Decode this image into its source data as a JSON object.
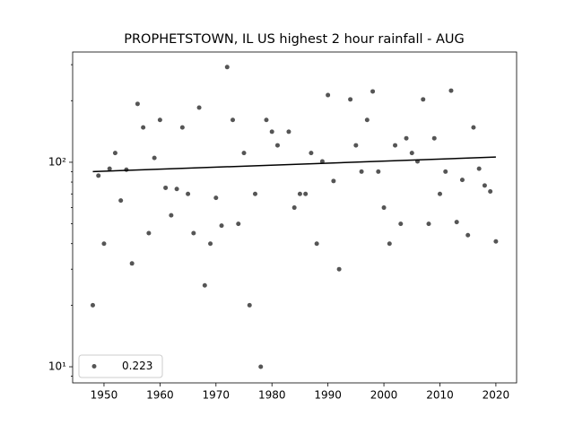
{
  "chart_data": {
    "type": "scatter",
    "title": "PROPHETSTOWN, IL US highest 2 hour rainfall - AUG",
    "series": [
      {
        "name": "0.223",
        "color": "#555555",
        "x": [
          1948,
          1949,
          1950,
          1951,
          1952,
          1953,
          1954,
          1955,
          1956,
          1957,
          1958,
          1959,
          1960,
          1961,
          1962,
          1963,
          1964,
          1965,
          1966,
          1967,
          1968,
          1969,
          1970,
          1971,
          1972,
          1973,
          1974,
          1975,
          1976,
          1977,
          1978,
          1979,
          1980,
          1981,
          1983,
          1984,
          1985,
          1986,
          1987,
          1988,
          1989,
          1990,
          1991,
          1992,
          1994,
          1995,
          1996,
          1997,
          1998,
          1999,
          2000,
          2001,
          2002,
          2003,
          2004,
          2005,
          2006,
          2007,
          2008,
          2009,
          2010,
          2011,
          2012,
          2013,
          2014,
          2015,
          2016,
          2017,
          2018,
          2019,
          2020
        ],
        "values": [
          20,
          86,
          40,
          93,
          111,
          65,
          92,
          32,
          193,
          148,
          45,
          105,
          161,
          75,
          55,
          74,
          148,
          70,
          45,
          185,
          25,
          40,
          67,
          49,
          292,
          161,
          50,
          111,
          20,
          70,
          10,
          161,
          141,
          121,
          141,
          60,
          70,
          70,
          111,
          40,
          101,
          213,
          81,
          30,
          203,
          121,
          90,
          161,
          222,
          90,
          60,
          40,
          121,
          50,
          131,
          111,
          101,
          203,
          50,
          131,
          70,
          90,
          224,
          51,
          82,
          44,
          148,
          93,
          77,
          72,
          41
        ]
      }
    ],
    "trend": {
      "x": [
        1948,
        2020
      ],
      "values": [
        90,
        106
      ],
      "color": "#000000"
    },
    "xlim": [
      1944.4,
      2023.7
    ],
    "xticks": [
      1950,
      1960,
      1970,
      1980,
      1990,
      2000,
      2010,
      2020
    ],
    "ylim": [
      8.34,
      346
    ],
    "log_y": true,
    "yticks": [
      {
        "value": 10,
        "label": "10¹"
      },
      {
        "value": 100,
        "label": "10²"
      }
    ],
    "yminorticks": [
      9,
      20,
      30,
      40,
      50,
      60,
      70,
      80,
      90,
      200,
      300
    ],
    "legend": "lower left"
  }
}
